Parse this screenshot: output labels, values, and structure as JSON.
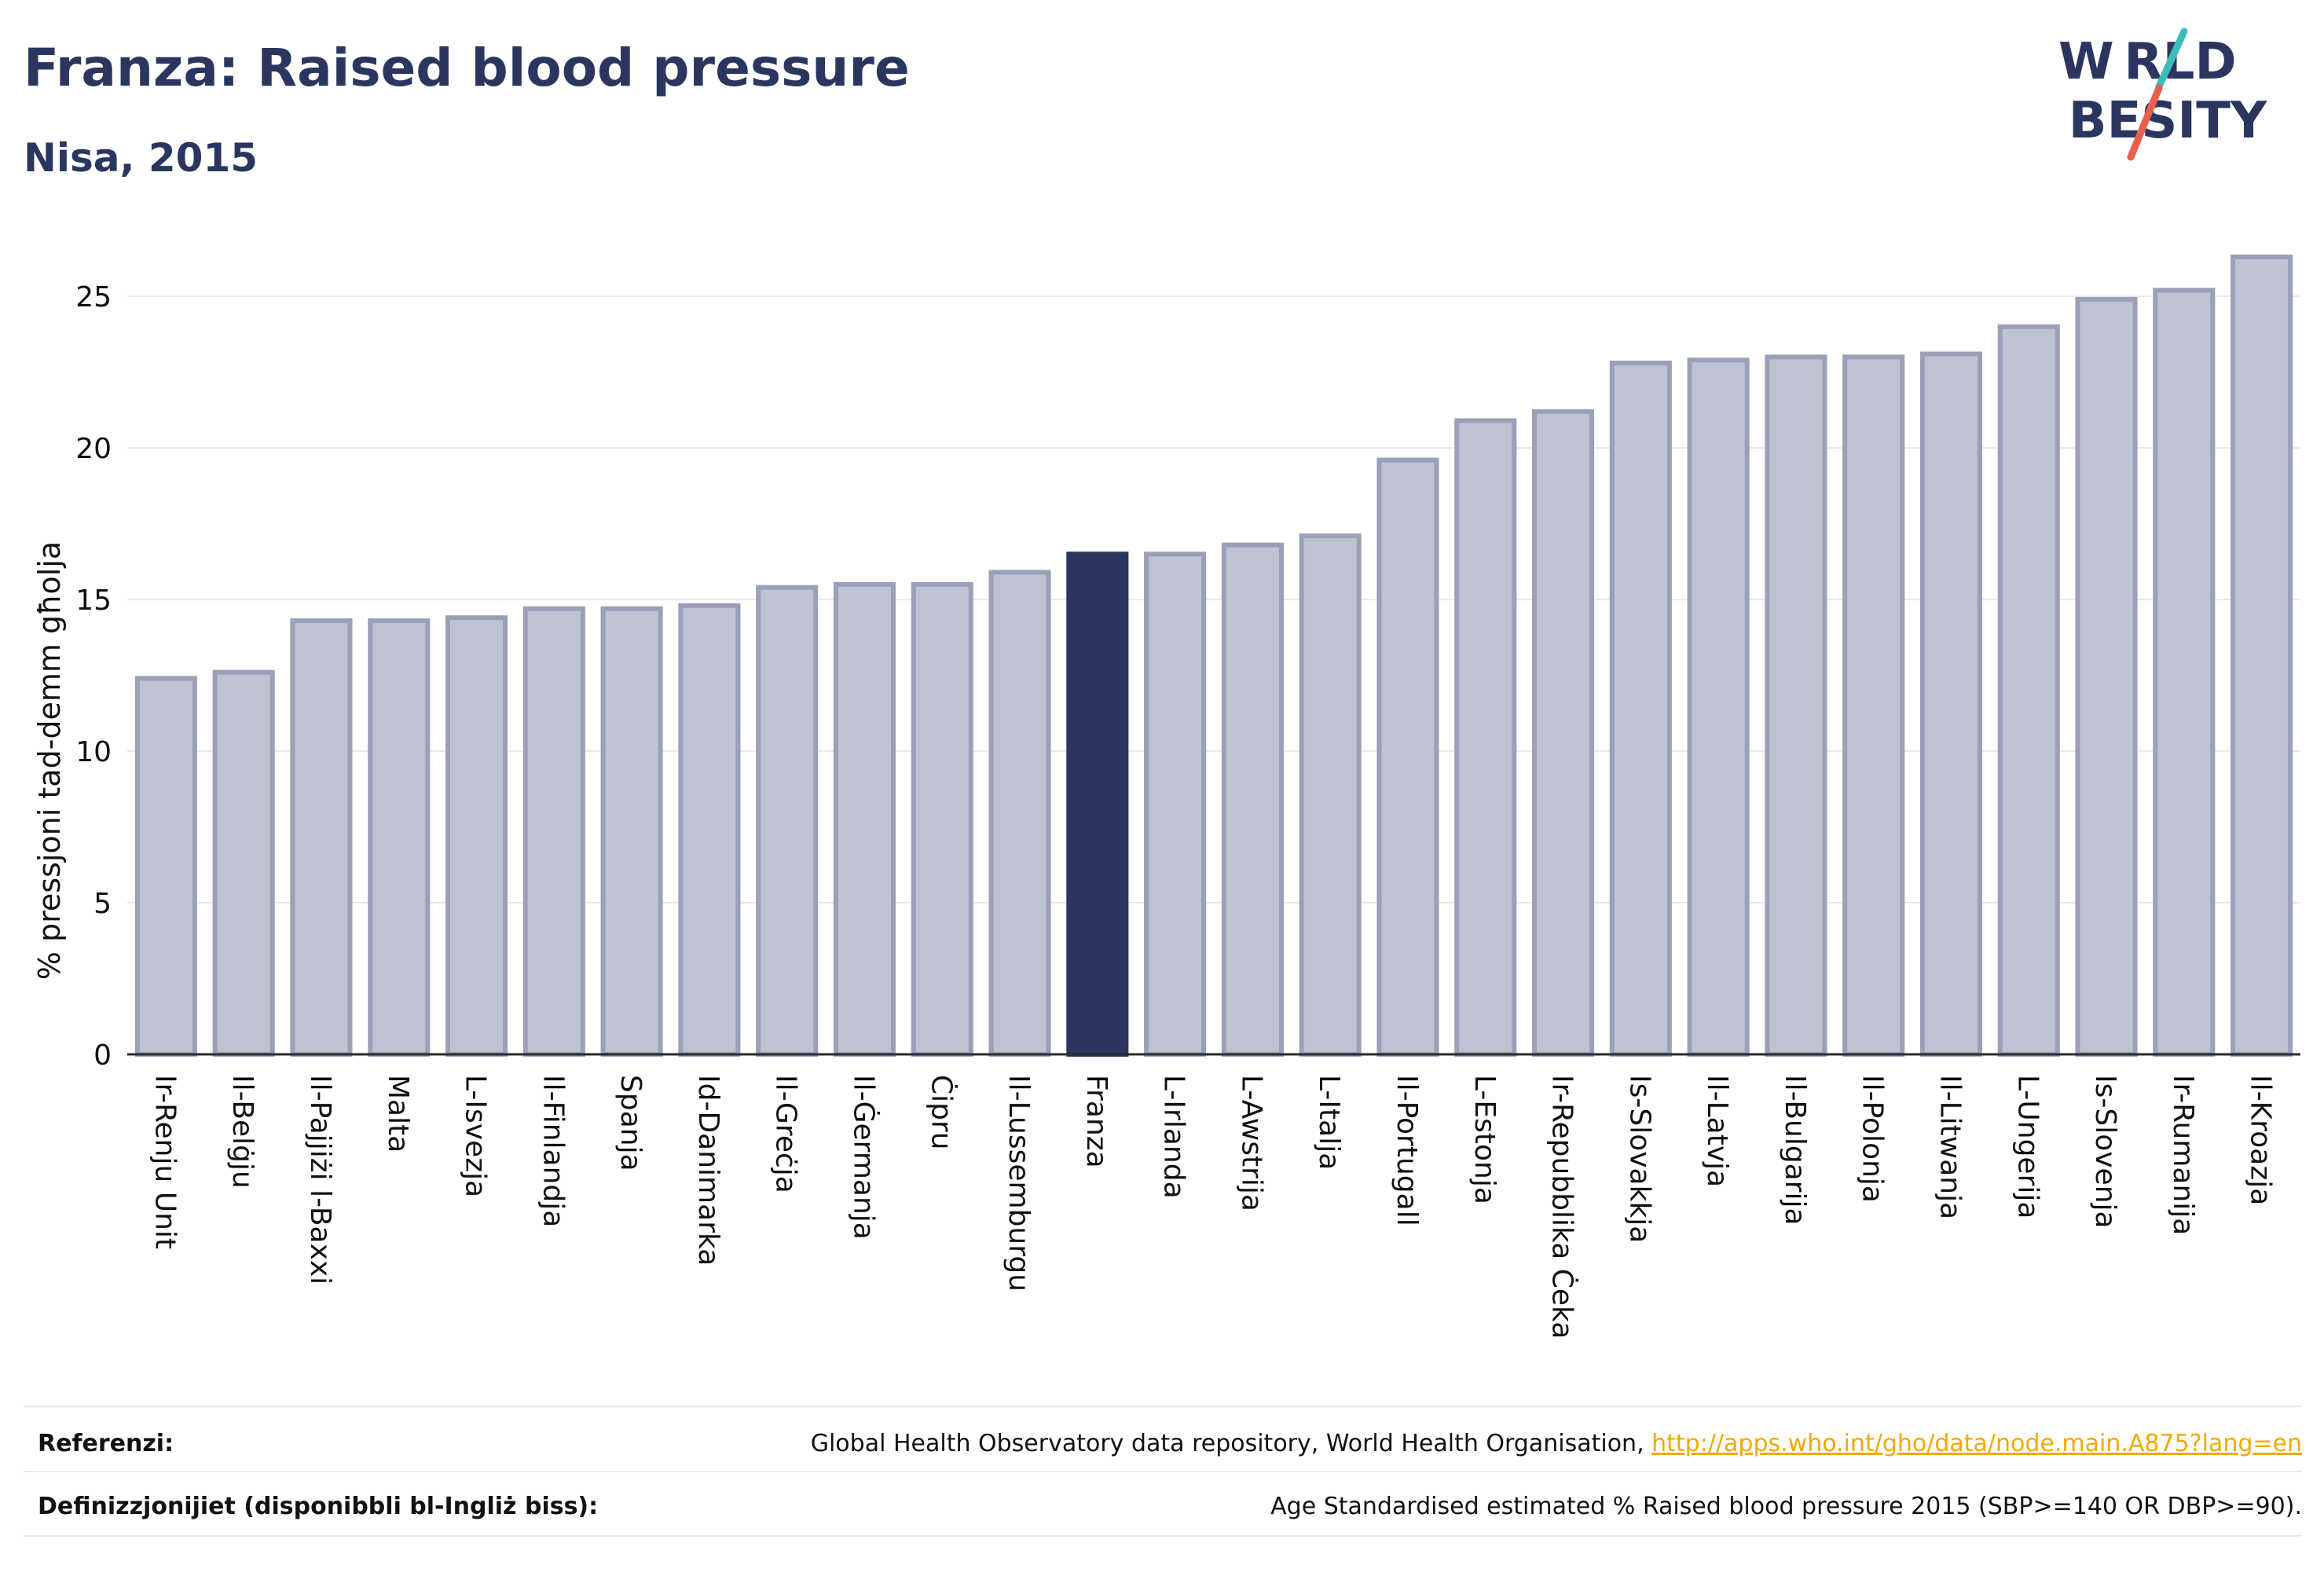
{
  "title": "Franza: Raised blood pressure",
  "subtitle": "Nisa, 2015",
  "logo": {
    "line1": "W RLD",
    "line2": " BESITY",
    "slash_colors": [
      "#3dbdb9",
      "#e8604c"
    ]
  },
  "colors": {
    "bar": "#bec2d1",
    "bar_border": "#9aa0b8",
    "highlight": "#2b3660",
    "grid": "#e6e8ee",
    "axis": "#2b2b2b",
    "link": "#f2a900"
  },
  "chart_data": {
    "type": "bar",
    "highlight": "Franza",
    "categories": [
      "Ir-Renju Unit",
      "Il-Belġju",
      "Il-Pajjiżi l-Baxxi",
      "Malta",
      "L-Isvezja",
      "Il-Finlandja",
      "Spanja",
      "Id-Danimarka",
      "Il-Greċja",
      "Il-Ġermanja",
      "Ċipru",
      "Il-Lussemburgu",
      "Franza",
      "L-Irlanda",
      "L-Awstrija",
      "L-Italja",
      "Il-Portugall",
      "L-Estonja",
      "Ir-Repubblika Ċeka",
      "Is-Slovakkja",
      "Il-Latvja",
      "Il-Bulgarija",
      "Il-Polonja",
      "Il-Litwanja",
      "L-Ungerija",
      "Is-Slovenja",
      "Ir-Rumanija",
      "Il-Kroazja"
    ],
    "values": [
      12.4,
      12.6,
      14.3,
      14.3,
      14.4,
      14.7,
      14.7,
      14.8,
      15.4,
      15.5,
      15.5,
      15.9,
      16.5,
      16.5,
      16.8,
      17.1,
      19.6,
      20.9,
      21.2,
      22.8,
      22.9,
      23.0,
      23.0,
      23.1,
      24.0,
      24.9,
      25.2,
      26.3
    ],
    "ylabel": "% pressjoni tad-demm għolja",
    "xlabel": "",
    "ylim": [
      0,
      27
    ],
    "yticks": [
      0,
      5,
      10,
      15,
      20,
      25
    ],
    "grid": true
  },
  "footer": {
    "ref_label": "Referenzi:",
    "ref_text": "Global Health Observatory data repository, World Health Organisation, ",
    "ref_link": "http://apps.who.int/gho/data/node.main.A875?lang=en",
    "def_label": "Definizzjonijiet (disponibbli bl-Ingliż biss):",
    "def_text": "Age Standardised estimated % Raised blood pressure 2015 (SBP>=140 OR DBP>=90)."
  }
}
